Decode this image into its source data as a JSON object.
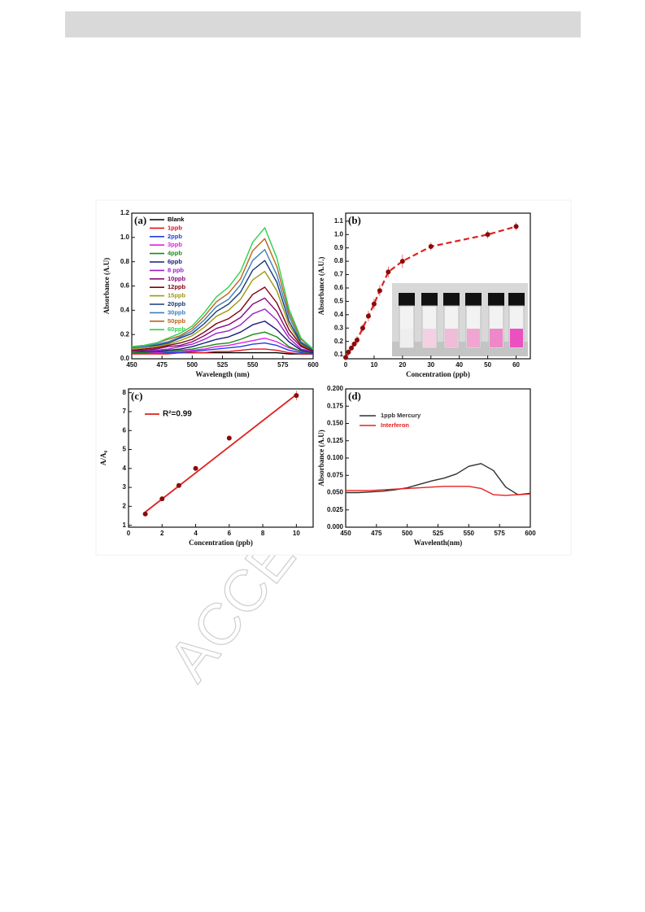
{
  "watermark": "ACCEPTED",
  "chart_data": [
    {
      "type": "line",
      "label": "(a)",
      "xlabel": "Wavelength (nm)",
      "ylabel": "Absorbance (A.U)",
      "x": [
        450,
        460,
        470,
        480,
        490,
        500,
        510,
        520,
        530,
        540,
        550,
        560,
        570,
        580,
        590,
        600
      ],
      "xlim": [
        450,
        600
      ],
      "ylim": [
        0,
        1.2
      ],
      "xticks": [
        450,
        475,
        500,
        525,
        550,
        575,
        600
      ],
      "yticks": [
        {
          "value": 0,
          "label": "0.0"
        },
        0.2,
        0.4,
        0.6,
        0.8,
        {
          "value": 1,
          "label": "1.0"
        },
        1.2
      ],
      "legend": "upper left",
      "series": [
        {
          "name": "Blank",
          "color": "#000000",
          "values": [
            0.05,
            0.05,
            0.05,
            0.05,
            0.05,
            0.05,
            0.05,
            0.05,
            0.05,
            0.05,
            0.05,
            0.05,
            0.05,
            0.04,
            0.04,
            0.04
          ]
        },
        {
          "name": "1ppb",
          "color": "#e8101a",
          "values": [
            0.04,
            0.04,
            0.04,
            0.04,
            0.05,
            0.05,
            0.05,
            0.06,
            0.06,
            0.07,
            0.08,
            0.08,
            0.07,
            0.05,
            0.04,
            0.04
          ]
        },
        {
          "name": "2ppb",
          "color": "#1f3fe0",
          "values": [
            0.05,
            0.05,
            0.05,
            0.05,
            0.05,
            0.06,
            0.07,
            0.08,
            0.09,
            0.1,
            0.12,
            0.13,
            0.11,
            0.07,
            0.05,
            0.04
          ]
        },
        {
          "name": "3ppb",
          "color": "#e020e0",
          "values": [
            0.05,
            0.05,
            0.05,
            0.06,
            0.06,
            0.07,
            0.08,
            0.1,
            0.11,
            0.13,
            0.15,
            0.17,
            0.14,
            0.09,
            0.06,
            0.05
          ]
        },
        {
          "name": "4ppb",
          "color": "#1a8a1a",
          "values": [
            0.05,
            0.05,
            0.06,
            0.06,
            0.07,
            0.08,
            0.1,
            0.12,
            0.13,
            0.16,
            0.2,
            0.22,
            0.18,
            0.1,
            0.06,
            0.05
          ]
        },
        {
          "name": "6ppb",
          "color": "#1a1a7a",
          "values": [
            0.06,
            0.06,
            0.06,
            0.07,
            0.08,
            0.1,
            0.13,
            0.16,
            0.18,
            0.22,
            0.28,
            0.31,
            0.24,
            0.14,
            0.07,
            0.05
          ]
        },
        {
          "name": "8 ppb",
          "color": "#9a20c8",
          "values": [
            0.06,
            0.07,
            0.07,
            0.08,
            0.1,
            0.12,
            0.16,
            0.21,
            0.23,
            0.28,
            0.37,
            0.41,
            0.32,
            0.17,
            0.08,
            0.06
          ]
        },
        {
          "name": "10ppb",
          "color": "#8a0a7a",
          "values": [
            0.07,
            0.07,
            0.08,
            0.1,
            0.11,
            0.14,
            0.19,
            0.25,
            0.28,
            0.34,
            0.45,
            0.5,
            0.39,
            0.2,
            0.1,
            0.06
          ]
        },
        {
          "name": "12ppb",
          "color": "#800010",
          "values": [
            0.07,
            0.08,
            0.09,
            0.11,
            0.13,
            0.16,
            0.22,
            0.29,
            0.33,
            0.4,
            0.53,
            0.59,
            0.46,
            0.24,
            0.11,
            0.06
          ]
        },
        {
          "name": "15ppb",
          "color": "#9a9a10",
          "values": [
            0.08,
            0.09,
            0.1,
            0.12,
            0.15,
            0.19,
            0.26,
            0.35,
            0.4,
            0.49,
            0.65,
            0.72,
            0.56,
            0.28,
            0.12,
            0.07
          ]
        },
        {
          "name": "20ppb",
          "color": "#1a3a7a",
          "values": [
            0.09,
            0.1,
            0.11,
            0.13,
            0.17,
            0.21,
            0.29,
            0.39,
            0.45,
            0.55,
            0.73,
            0.81,
            0.63,
            0.31,
            0.13,
            0.07
          ]
        },
        {
          "name": "30ppb",
          "color": "#3a80b8",
          "values": [
            0.09,
            0.1,
            0.12,
            0.14,
            0.18,
            0.23,
            0.32,
            0.43,
            0.49,
            0.61,
            0.81,
            0.9,
            0.69,
            0.35,
            0.14,
            0.08
          ]
        },
        {
          "name": "50ppb",
          "color": "#b8651b",
          "values": [
            0.1,
            0.11,
            0.13,
            0.16,
            0.19,
            0.25,
            0.35,
            0.47,
            0.54,
            0.66,
            0.89,
            0.99,
            0.76,
            0.38,
            0.16,
            0.08
          ]
        },
        {
          "name": "60ppb",
          "color": "#30d050",
          "values": [
            0.1,
            0.11,
            0.13,
            0.17,
            0.21,
            0.27,
            0.38,
            0.51,
            0.59,
            0.72,
            0.96,
            1.08,
            0.83,
            0.41,
            0.17,
            0.08
          ]
        }
      ]
    },
    {
      "type": "scatter",
      "label": "(b)",
      "xlabel": "Concentration (ppb)",
      "ylabel": "Absorbance (A.U.)",
      "x": [
        0,
        1,
        2,
        3,
        4,
        6,
        8,
        10,
        12,
        15,
        20,
        30,
        50,
        60
      ],
      "values": [
        0.08,
        0.12,
        0.15,
        0.18,
        0.21,
        0.3,
        0.39,
        0.48,
        0.58,
        0.72,
        0.8,
        0.91,
        1.0,
        1.06
      ],
      "errors": [
        0.02,
        0.02,
        0.02,
        0.02,
        0.03,
        0.03,
        0.04,
        0.04,
        0.04,
        0.04,
        0.05,
        0.03,
        0.03,
        0.03
      ],
      "color": "#8b0a0a",
      "line_color": "#e02020",
      "line_style": "dashed",
      "xlim": [
        0,
        65
      ],
      "ylim": [
        0.07,
        1.16
      ],
      "xticks": [
        0,
        10,
        20,
        30,
        40,
        50,
        60
      ],
      "yticks": [
        0.1,
        0.2,
        0.3,
        0.4,
        0.5,
        0.6,
        0.7,
        0.8,
        0.9,
        {
          "value": 1,
          "label": "1.0"
        },
        1.1
      ]
    },
    {
      "type": "scatter",
      "label": "(c)",
      "xlabel": "Concentration (ppb)",
      "ylabel": "A/A₀",
      "x": [
        1,
        2,
        3,
        4,
        6,
        10
      ],
      "values": [
        1.6,
        2.4,
        3.1,
        4.0,
        5.6,
        7.85
      ],
      "errors": [
        0.1,
        0.1,
        0.1,
        0.1,
        0.1,
        0.25
      ],
      "color": "#8b0a0a",
      "fit": {
        "x": [
          1,
          10
        ],
        "y": [
          1.7,
          7.9
        ]
      },
      "fit_color": "#e02020",
      "fit_name": "R²=0.99",
      "legend": "upper left",
      "xlim": [
        0,
        11
      ],
      "ylim": [
        0.9,
        8.2
      ],
      "xticks": [
        0,
        2,
        4,
        6,
        8,
        10
      ],
      "yticks": [
        1,
        2,
        3,
        4,
        5,
        6,
        7,
        8
      ]
    },
    {
      "type": "line",
      "label": "(d)",
      "xlabel": "Wavelenth(nm)",
      "ylabel": "Absorbance (A.U)",
      "x": [
        450,
        460,
        470,
        480,
        490,
        500,
        510,
        520,
        530,
        540,
        550,
        560,
        570,
        580,
        590,
        600
      ],
      "xlim": [
        450,
        600
      ],
      "ylim": [
        0,
        0.2
      ],
      "xticks": [
        450,
        475,
        500,
        525,
        550,
        575,
        600
      ],
      "yticks": [
        {
          "value": 0,
          "label": "0.000"
        },
        0.025,
        {
          "value": 0.05,
          "label": "0.050"
        },
        0.075,
        {
          "value": 0.1,
          "label": "0.100"
        },
        0.125,
        {
          "value": 0.15,
          "label": "0.150"
        },
        0.175,
        {
          "value": 0.2,
          "label": "0.200"
        }
      ],
      "legend": "upper left",
      "series": [
        {
          "name": "1ppb Mercury",
          "color": "#303030",
          "values": [
            0.05,
            0.05,
            0.051,
            0.052,
            0.054,
            0.057,
            0.062,
            0.067,
            0.071,
            0.077,
            0.088,
            0.092,
            0.082,
            0.058,
            0.047,
            0.049
          ]
        },
        {
          "name": "Interferon",
          "color": "#e82020",
          "values": [
            0.053,
            0.053,
            0.053,
            0.054,
            0.055,
            0.056,
            0.057,
            0.058,
            0.059,
            0.059,
            0.059,
            0.056,
            0.047,
            0.046,
            0.047,
            0.048
          ]
        }
      ]
    }
  ]
}
